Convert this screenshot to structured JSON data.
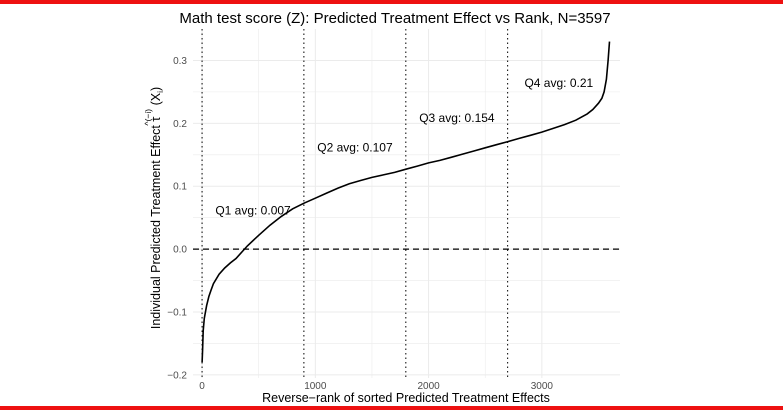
{
  "colors": {
    "frame_bar": "#ee1111",
    "curve": "#000000",
    "grid": "#ebebeb"
  },
  "chart_data": {
    "type": "line",
    "title": "Math test score (Z): Predicted Treatment Effect vs Rank, N=3597",
    "xlabel": "Reverse−rank of sorted Predicted Treatment Effects",
    "ylabel_text": "Individual Predicted Treatment Effect ",
    "ylabel_symbol": "τ",
    "ylabel_hat": "^",
    "ylabel_superscript": "(−i)",
    "ylabel_argument": " (X",
    "ylabel_subscript": "i",
    "ylabel_close": ")",
    "xlim": [
      -80,
      3690
    ],
    "ylim": [
      -0.205,
      0.35
    ],
    "x_ticks": [
      0,
      1000,
      2000,
      3000
    ],
    "x_tick_labels": [
      "0",
      "1000",
      "2000",
      "3000"
    ],
    "y_ticks": [
      -0.2,
      -0.1,
      0.0,
      0.1,
      0.2,
      0.3
    ],
    "y_tick_labels": [
      "−0.2",
      "−0.1",
      "0.0",
      "0.1",
      "0.2",
      "0.3"
    ],
    "grid": true,
    "reference_line": {
      "y": 0.0,
      "style": "dashed"
    },
    "quartile_boundaries": [
      0,
      899,
      1799,
      2698
    ],
    "annotations": [
      {
        "text": "Q1 avg: 0.007",
        "x": 450,
        "y": 0.055
      },
      {
        "text": "Q2 avg: 0.107",
        "x": 1350,
        "y": 0.155
      },
      {
        "text": "Q3 avg: 0.154",
        "x": 2250,
        "y": 0.202
      },
      {
        "text": "Q4 avg: 0.21",
        "x": 3150,
        "y": 0.258
      }
    ],
    "series": [
      {
        "x": [
          0,
          5,
          10,
          20,
          40,
          60,
          80,
          100,
          150,
          200,
          250,
          300,
          400,
          500,
          600,
          700,
          800,
          900,
          1000,
          1100,
          1200,
          1300,
          1400,
          1500,
          1600,
          1700,
          1800,
          1900,
          2000,
          2100,
          2200,
          2300,
          2400,
          2500,
          2600,
          2700,
          2800,
          2900,
          3000,
          3100,
          3200,
          3300,
          3400,
          3450,
          3500,
          3530,
          3550,
          3570,
          3585,
          3597
        ],
        "y": [
          -0.18,
          -0.16,
          -0.13,
          -0.11,
          -0.09,
          -0.075,
          -0.065,
          -0.055,
          -0.04,
          -0.03,
          -0.022,
          -0.015,
          0.005,
          0.022,
          0.038,
          0.052,
          0.064,
          0.073,
          0.081,
          0.089,
          0.097,
          0.104,
          0.109,
          0.114,
          0.118,
          0.122,
          0.127,
          0.132,
          0.137,
          0.141,
          0.146,
          0.151,
          0.156,
          0.161,
          0.166,
          0.171,
          0.176,
          0.181,
          0.186,
          0.192,
          0.198,
          0.205,
          0.215,
          0.222,
          0.232,
          0.24,
          0.25,
          0.27,
          0.3,
          0.33
        ]
      }
    ]
  }
}
